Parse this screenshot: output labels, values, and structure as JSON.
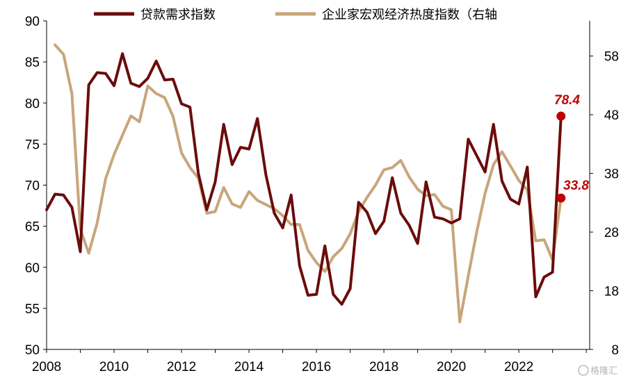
{
  "chart_data": {
    "type": "line",
    "legend_position": "top",
    "grid": false,
    "colors": {
      "series_1": "#6b0c0c",
      "series_2": "#c8a57b",
      "marker": "#c00000",
      "annotation": "#c00000"
    },
    "x_ticks": [
      "2008",
      "2010",
      "2012",
      "2014",
      "2016",
      "2018",
      "2020",
      "2022"
    ],
    "y_left": {
      "ticks": [
        "50",
        "55",
        "60",
        "65",
        "70",
        "75",
        "80",
        "85",
        "90"
      ],
      "range": [
        50,
        90
      ]
    },
    "y_right": {
      "ticks": [
        "8",
        "18",
        "28",
        "38",
        "48",
        "58"
      ],
      "range": [
        8,
        64
      ]
    },
    "x_range": [
      2008,
      2024.1
    ],
    "series": [
      {
        "name": "贷款需求指数",
        "axis": "left",
        "x": [
          2008.0,
          2008.25,
          2008.5,
          2008.75,
          2009.0,
          2009.25,
          2009.5,
          2009.75,
          2010.0,
          2010.25,
          2010.5,
          2010.75,
          2011.0,
          2011.25,
          2011.5,
          2011.75,
          2012.0,
          2012.25,
          2012.5,
          2012.75,
          2013.0,
          2013.25,
          2013.5,
          2013.75,
          2014.0,
          2014.25,
          2014.5,
          2014.75,
          2015.0,
          2015.25,
          2015.5,
          2015.75,
          2016.0,
          2016.25,
          2016.5,
          2016.75,
          2017.0,
          2017.25,
          2017.5,
          2017.75,
          2018.0,
          2018.25,
          2018.5,
          2018.75,
          2019.0,
          2019.25,
          2019.5,
          2019.75,
          2020.0,
          2020.25,
          2020.5,
          2020.75,
          2021.0,
          2021.25,
          2021.5,
          2021.75,
          2022.0,
          2022.25,
          2022.5,
          2022.75,
          2023.0,
          2023.25
        ],
        "values": [
          67.0,
          68.9,
          68.8,
          67.3,
          61.9,
          82.2,
          83.7,
          83.6,
          82.1,
          86.0,
          82.4,
          82.0,
          83.0,
          85.1,
          82.8,
          82.9,
          79.9,
          79.5,
          71.4,
          67.0,
          70.4,
          77.4,
          72.5,
          74.6,
          74.4,
          78.1,
          71.3,
          66.6,
          64.8,
          68.8,
          60.2,
          56.6,
          56.7,
          62.6,
          56.7,
          55.5,
          57.4,
          67.9,
          66.7,
          64.1,
          65.6,
          70.9,
          66.6,
          65.1,
          62.9,
          70.4,
          66.1,
          65.9,
          65.4,
          65.9,
          75.6,
          73.6,
          71.6,
          77.4,
          70.5,
          68.3,
          67.7,
          72.2,
          56.4,
          58.8,
          59.4,
          78.4
        ]
      },
      {
        "name": "企业家宏观经济热度指数（右轴",
        "axis": "right",
        "x": [
          2008.25,
          2008.5,
          2008.75,
          2009.0,
          2009.25,
          2009.5,
          2009.75,
          2010.0,
          2010.25,
          2010.5,
          2010.75,
          2011.0,
          2011.25,
          2011.5,
          2011.75,
          2012.0,
          2012.25,
          2012.5,
          2012.75,
          2013.0,
          2013.25,
          2013.5,
          2013.75,
          2014.0,
          2014.25,
          2014.5,
          2014.75,
          2015.0,
          2015.25,
          2015.5,
          2015.75,
          2016.0,
          2016.25,
          2016.5,
          2016.75,
          2017.0,
          2017.25,
          2017.5,
          2017.75,
          2018.0,
          2018.25,
          2018.5,
          2018.75,
          2019.0,
          2019.25,
          2019.5,
          2019.75,
          2020.0,
          2020.25,
          2020.5,
          2020.75,
          2021.0,
          2021.25,
          2021.5,
          2021.75,
          2022.0,
          2022.25,
          2022.5,
          2022.75,
          2023.0,
          2023.25
        ],
        "values": [
          59.9,
          58.3,
          51.6,
          28.5,
          24.4,
          29.6,
          37.1,
          41.2,
          44.5,
          47.8,
          46.8,
          52.9,
          51.6,
          50.9,
          47.7,
          41.5,
          39.0,
          37.2,
          31.2,
          31.5,
          35.6,
          32.8,
          32.2,
          34.9,
          33.4,
          32.7,
          32.0,
          30.8,
          29.3,
          29.3,
          24.9,
          22.8,
          21.3,
          23.8,
          25.2,
          27.7,
          31.5,
          33.9,
          36.0,
          38.6,
          39.0,
          40.2,
          37.4,
          35.3,
          34.2,
          34.4,
          32.4,
          31.8,
          12.7,
          20.5,
          28.0,
          34.6,
          39.5,
          41.7,
          39.3,
          36.8,
          35.2,
          26.5,
          26.7,
          23.3,
          33.8
        ]
      }
    ],
    "annotations": [
      {
        "series": 0,
        "label": "78.4"
      },
      {
        "series": 1,
        "label": "33.8"
      }
    ]
  },
  "watermark": {
    "text": "格隆汇"
  }
}
